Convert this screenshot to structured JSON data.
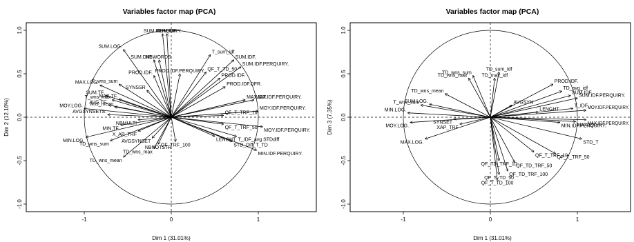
{
  "chart_data": [
    {
      "type": "scatter",
      "title": "Variables factor map (PCA)",
      "xlabel": "Dim 1 (31.01%)",
      "ylabel": "Dim 2 (12.16%)",
      "xlim": [
        -1.0,
        1.0
      ],
      "ylim": [
        -1.0,
        1.0
      ],
      "x_ticks": [
        -1,
        0,
        1
      ],
      "y_ticks": [
        -1.0,
        -0.5,
        0.0,
        0.5,
        1.0
      ],
      "unit_circle": true,
      "points": [
        {
          "label": "SUM.PERQUIRY.",
          "x": -0.1,
          "y": 0.96
        },
        {
          "label": "SUM.IDF.",
          "x": -0.05,
          "y": 0.96
        },
        {
          "label": "SUM.LOG.",
          "x": -0.55,
          "y": 0.78
        },
        {
          "label": "SUM.DIR.",
          "x": -0.2,
          "y": 0.66
        },
        {
          "label": "NBWORDS.",
          "x": -0.14,
          "y": 0.66
        },
        {
          "label": "MAX.LOG.",
          "x": -0.82,
          "y": 0.37
        },
        {
          "label": "MAX.TF.",
          "x": -0.6,
          "y": 0.21
        },
        {
          "label": "T_wns_sum",
          "x": -0.6,
          "y": 0.38
        },
        {
          "label": "SUM.TF.",
          "x": -0.75,
          "y": 0.25
        },
        {
          "label": "T_wns_max",
          "x": -0.68,
          "y": 0.2
        },
        {
          "label": "AVG.TF.",
          "x": -0.72,
          "y": 0.14
        },
        {
          "label": "MOY.LOG.",
          "x": -1.0,
          "y": 0.1
        },
        {
          "label": "wns_mean",
          "x": -0.65,
          "y": 0.12
        },
        {
          "label": "AVGSYNSETS.",
          "x": -0.73,
          "y": 0.03
        },
        {
          "label": "MIN.TF.",
          "x": -0.58,
          "y": -0.09
        },
        {
          "label": "MIN.LOG.",
          "x": -0.98,
          "y": -0.23
        },
        {
          "label": "TD_wns_sum",
          "x": -0.7,
          "y": -0.27
        },
        {
          "label": "TD_wns_max",
          "x": -0.2,
          "y": -0.36
        },
        {
          "label": "TD_wns_mean",
          "x": -0.55,
          "y": -0.46
        },
        {
          "label": "NBMULTI",
          "x": -0.38,
          "y": -0.03
        },
        {
          "label": "X_AP_TRF",
          "x": -0.38,
          "y": -0.16
        },
        {
          "label": "AVGSYNSET",
          "x": -0.22,
          "y": -0.24
        },
        {
          "label": "NBNOTSTR",
          "x": -0.15,
          "y": -0.31
        },
        {
          "label": "SYNSSR",
          "x": -0.28,
          "y": 0.31
        },
        {
          "label": "PROD.IDF.",
          "x": -0.2,
          "y": 0.48
        },
        {
          "label": "PROD.IDF.PERQUIRY.",
          "x": 0.1,
          "y": 0.5
        },
        {
          "label": "QF_T_TD_50",
          "x": 0.4,
          "y": 0.52
        },
        {
          "label": "T_sum_idf",
          "x": 0.45,
          "y": 0.72
        },
        {
          "label": "SUM.IDF.",
          "x": 0.72,
          "y": 0.66
        },
        {
          "label": "SUM.IDF.PERQUIRY.",
          "x": 0.8,
          "y": 0.58
        },
        {
          "label": "PROD.IDF.",
          "x": 0.56,
          "y": 0.45
        },
        {
          "label": "PROD.IDF.DFR.",
          "x": 0.62,
          "y": 0.35
        },
        {
          "label": "MAX.IDF.PERQUIRY.",
          "x": 0.95,
          "y": 0.2
        },
        {
          "label": "MAX.IDF.",
          "x": 0.85,
          "y": 0.2
        },
        {
          "label": "MOY.IDF.PERQUIRY.",
          "x": 1.0,
          "y": 0.07
        },
        {
          "label": "QF_T_TRF_10",
          "x": 0.6,
          "y": 0.02
        },
        {
          "label": "QF_T_TRF_50",
          "x": 0.6,
          "y": -0.08
        },
        {
          "label": "MOY.IDF.PERQUIRY.",
          "x": 1.05,
          "y": -0.11
        },
        {
          "label": "T_IDF_avg STDdiff",
          "x": 0.75,
          "y": -0.22
        },
        {
          "label": "LENGHT",
          "x": 0.5,
          "y": -0.22
        },
        {
          "label": "STD_Diff_T_TD",
          "x": 0.7,
          "y": -0.28
        },
        {
          "label": "MIN.IDF.PERQUIRY.",
          "x": 0.98,
          "y": -0.38
        },
        {
          "label": "QF_TRF_100",
          "x": 0.05,
          "y": -0.28
        }
      ]
    },
    {
      "type": "scatter",
      "title": "Variables factor map (PCA)",
      "xlabel": "Dim 1 (31.01%)",
      "ylabel": "Dim 3 (7.35%)",
      "xlim": [
        -1.0,
        1.0
      ],
      "ylim": [
        -1.0,
        1.0
      ],
      "x_ticks": [
        -1,
        0,
        1
      ],
      "y_ticks": [
        -1.0,
        -0.5,
        0.0,
        0.5,
        1.0
      ],
      "unit_circle": true,
      "points": [
        {
          "label": "TD_sum_idf",
          "x": 0.1,
          "y": 0.52
        },
        {
          "label": "TD_wns_sum",
          "x": -0.2,
          "y": 0.48
        },
        {
          "label": "TD_wns_max",
          "x": -0.25,
          "y": 0.45
        },
        {
          "label": "TD_max_idf",
          "x": 0.05,
          "y": 0.45
        },
        {
          "label": "TD_wns_mean",
          "x": -0.52,
          "y": 0.27
        },
        {
          "label": "PROD.IDF.",
          "x": 0.72,
          "y": 0.38
        },
        {
          "label": "TD_avg_idf",
          "x": 0.82,
          "y": 0.3
        },
        {
          "label": "SUM.IDF.",
          "x": 0.92,
          "y": 0.25
        },
        {
          "label": "SUM.IDF.PERQUIRY.",
          "x": 1.0,
          "y": 0.22
        },
        {
          "label": "T_IDF",
          "x": 0.95,
          "y": 0.1
        },
        {
          "label": "MOY.IDF.PERQUIRY.",
          "x": 1.1,
          "y": 0.08
        },
        {
          "label": "MAX.IDF.",
          "x": 0.98,
          "y": -0.05
        },
        {
          "label": "MAX.IDF.PERQUIRY.",
          "x": 1.1,
          "y": -0.03
        },
        {
          "label": "STD_T",
          "x": 1.05,
          "y": -0.25
        },
        {
          "label": "LENGHT",
          "x": 0.55,
          "y": 0.06
        },
        {
          "label": "MAX.LOG.",
          "x": -0.75,
          "y": -0.25
        },
        {
          "label": "MOY.LOG.",
          "x": -0.92,
          "y": -0.06
        },
        {
          "label": "MIN.LOG.",
          "x": -0.95,
          "y": 0.05
        },
        {
          "label": "T_wns_sum",
          "x": -0.8,
          "y": 0.14
        },
        {
          "label": "SUM.LOG.",
          "x": -0.7,
          "y": 0.15
        },
        {
          "label": "SYNSET",
          "x": -0.42,
          "y": -0.02
        },
        {
          "label": "XAP_TRF",
          "x": -0.35,
          "y": -0.08
        },
        {
          "label": "AVGSYN",
          "x": 0.25,
          "y": 0.14
        },
        {
          "label": "MIN.IDF.PERQUIRY.",
          "x": 0.8,
          "y": -0.06
        },
        {
          "label": "QF_T_TRF_10",
          "x": 0.5,
          "y": -0.4
        },
        {
          "label": "QF_T_TRF_50",
          "x": 0.75,
          "y": -0.42
        },
        {
          "label": "QF_TD_TRF_10",
          "x": 0.1,
          "y": -0.5
        },
        {
          "label": "QF_TD_TRF_50",
          "x": 0.28,
          "y": -0.52
        },
        {
          "label": "QF_TD_TRF_100",
          "x": 0.2,
          "y": -0.62
        },
        {
          "label": "QF_T_TD_50",
          "x": 0.1,
          "y": -0.66
        },
        {
          "label": "QF_T_TD_100",
          "x": 0.08,
          "y": -0.72
        }
      ]
    }
  ]
}
